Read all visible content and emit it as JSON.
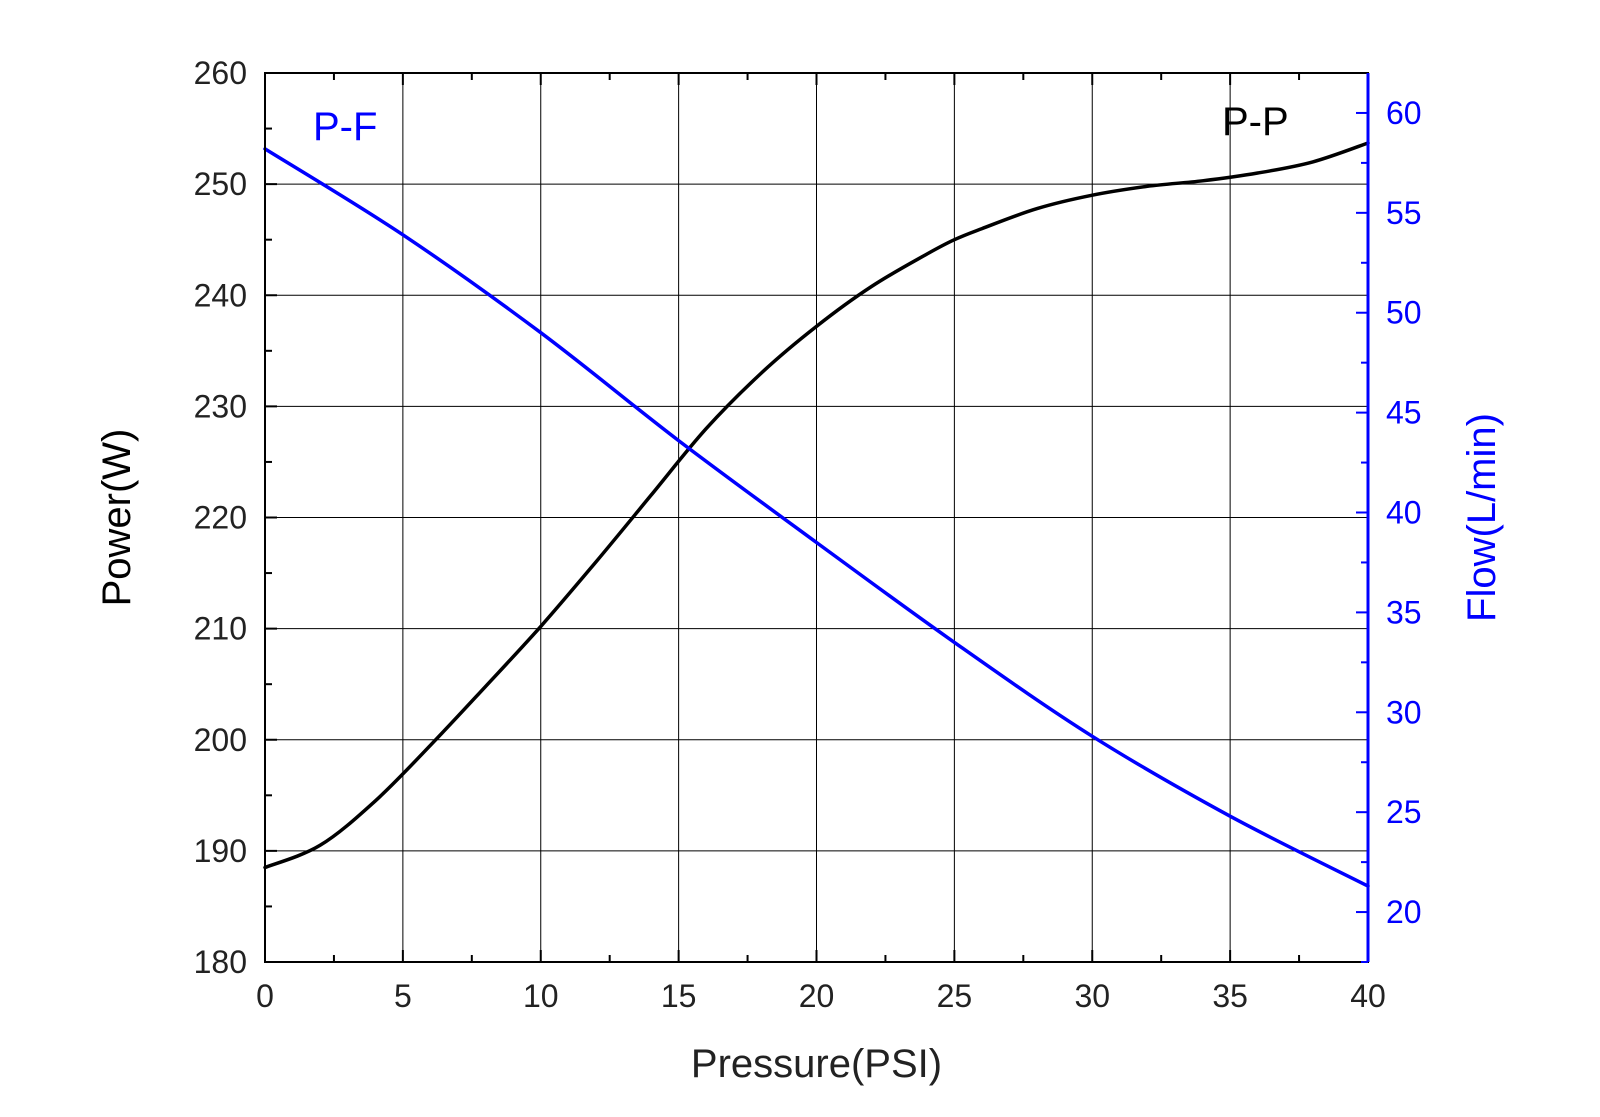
{
  "chart_data": {
    "type": "line",
    "xlabel": "Pressure(PSI)",
    "ylabel_left": "Power(W)",
    "ylabel_right": "Flow(L/min)",
    "xlim": [
      0,
      40
    ],
    "ylim_left": [
      180,
      260
    ],
    "ylim_right": [
      17.5,
      62
    ],
    "x_ticks": [
      0,
      5,
      10,
      15,
      20,
      25,
      30,
      35,
      40
    ],
    "y_left_ticks": [
      180,
      190,
      200,
      210,
      220,
      230,
      240,
      250,
      260
    ],
    "y_right_ticks": [
      20,
      25,
      30,
      35,
      40,
      45,
      50,
      55,
      60
    ],
    "grid": true,
    "series": [
      {
        "name": "P-P",
        "axis": "left",
        "color": "#000000",
        "x": [
          0,
          2,
          4,
          6,
          8,
          10,
          12,
          14,
          16,
          18,
          20,
          22,
          24,
          25,
          26,
          28,
          30,
          32,
          34,
          36,
          38,
          40
        ],
        "y": [
          188.5,
          190.5,
          194.5,
          199.5,
          204.8,
          210.2,
          216.0,
          222.0,
          228.0,
          233.0,
          237.2,
          240.8,
          243.7,
          245.0,
          246.0,
          247.8,
          249.0,
          249.8,
          250.3,
          251.0,
          252.0,
          253.7
        ]
      },
      {
        "name": "P-F",
        "axis": "right",
        "color": "#0000ff",
        "x": [
          0,
          5,
          10,
          15,
          20,
          25,
          30,
          35,
          40
        ],
        "y": [
          58.2,
          53.9,
          49.0,
          43.6,
          38.5,
          33.5,
          28.8,
          24.8,
          21.3
        ]
      }
    ]
  }
}
